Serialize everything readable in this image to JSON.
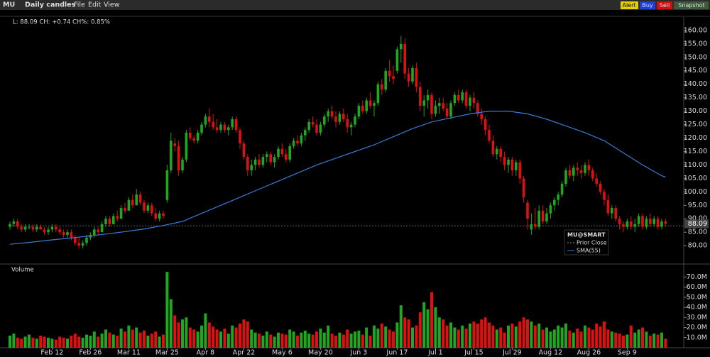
{
  "toolbar": {
    "symbol": "MU",
    "chart_type": "Daily candles",
    "menu": [
      "File",
      "Edit",
      "View"
    ],
    "buttons": [
      "Alert",
      "Buy",
      "Sell",
      "Snapshot"
    ]
  },
  "info": "L: 88.09 CH: +0.74 CH%: 0.85%",
  "legend": {
    "title": "MU@SMART",
    "items": [
      "Prior Close",
      "SMA(55)"
    ]
  },
  "volume_title": "Volume",
  "chart_data": {
    "type": "candlestick",
    "up_color": "#1fa81f",
    "down_color": "#e01010",
    "categories": [
      null,
      null,
      null,
      null,
      null,
      null,
      null,
      null,
      null,
      null,
      null,
      "Feb 12",
      null,
      null,
      null,
      null,
      null,
      null,
      null,
      null,
      null,
      "Feb 26",
      null,
      null,
      null,
      null,
      null,
      null,
      null,
      null,
      null,
      "Mar 11",
      null,
      null,
      null,
      null,
      null,
      null,
      null,
      null,
      null,
      "Mar 25",
      null,
      null,
      null,
      null,
      null,
      null,
      null,
      null,
      null,
      "Apr 8",
      null,
      null,
      null,
      null,
      null,
      null,
      null,
      null,
      null,
      "Apr 22",
      null,
      null,
      null,
      null,
      null,
      null,
      null,
      null,
      null,
      "May 6",
      null,
      null,
      null,
      null,
      null,
      null,
      null,
      null,
      null,
      "May 20",
      null,
      null,
      null,
      null,
      null,
      null,
      null,
      null,
      null,
      "Jun 3",
      null,
      null,
      null,
      null,
      null,
      null,
      null,
      null,
      null,
      "Jun 17",
      null,
      null,
      null,
      null,
      null,
      null,
      null,
      null,
      null,
      "Jul 1",
      null,
      null,
      null,
      null,
      null,
      null,
      null,
      null,
      null,
      "Jul 15",
      null,
      null,
      null,
      null,
      null,
      null,
      null,
      null,
      null,
      "Jul 29",
      null,
      null,
      null,
      null,
      null,
      null,
      null,
      null,
      null,
      "Aug 12",
      null,
      null,
      null,
      null,
      null,
      null,
      null,
      null,
      null,
      "Aug 26",
      null,
      null,
      null,
      null,
      null,
      null,
      null,
      null,
      null,
      "Sep 9",
      null,
      null,
      null,
      null,
      null,
      null,
      null,
      null,
      null,
      null
    ],
    "candles": [
      [
        87,
        89,
        86,
        88
      ],
      [
        88,
        90,
        87,
        89
      ],
      [
        89,
        90,
        86,
        87
      ],
      [
        87,
        88,
        85,
        86
      ],
      [
        86,
        88,
        85,
        87
      ],
      [
        87,
        88,
        86,
        87
      ],
      [
        87,
        88,
        85,
        86
      ],
      [
        86,
        88,
        85,
        87
      ],
      [
        87,
        88,
        86,
        86
      ],
      [
        86,
        87,
        84,
        85
      ],
      [
        85,
        87,
        84,
        86
      ],
      [
        86,
        88,
        85,
        87
      ],
      [
        87,
        88,
        85,
        86
      ],
      [
        86,
        87,
        84,
        85
      ],
      [
        85,
        86,
        83,
        84
      ],
      [
        84,
        86,
        83,
        85
      ],
      [
        85,
        86,
        82,
        83
      ],
      [
        83,
        84,
        80,
        81
      ],
      [
        81,
        83,
        79,
        80
      ],
      [
        80,
        82,
        79,
        81
      ],
      [
        81,
        84,
        80,
        83
      ],
      [
        83,
        85,
        82,
        84
      ],
      [
        84,
        87,
        83,
        86
      ],
      [
        86,
        87,
        84,
        85
      ],
      [
        85,
        89,
        85,
        88
      ],
      [
        88,
        91,
        87,
        90
      ],
      [
        90,
        91,
        87,
        88
      ],
      [
        88,
        92,
        88,
        91
      ],
      [
        91,
        93,
        89,
        90
      ],
      [
        90,
        95,
        90,
        94
      ],
      [
        94,
        96,
        92,
        93
      ],
      [
        93,
        98,
        93,
        97
      ],
      [
        97,
        99,
        94,
        95
      ],
      [
        95,
        101,
        95,
        99
      ],
      [
        99,
        100,
        95,
        96
      ],
      [
        96,
        97,
        92,
        93
      ],
      [
        93,
        96,
        92,
        95
      ],
      [
        95,
        96,
        91,
        92
      ],
      [
        92,
        94,
        89,
        90
      ],
      [
        90,
        93,
        89,
        92
      ],
      [
        92,
        93,
        90,
        91
      ],
      [
        97,
        110,
        96,
        108
      ],
      [
        108,
        122,
        107,
        119
      ],
      [
        118,
        120,
        115,
        117
      ],
      [
        117,
        119,
        106,
        108
      ],
      [
        108,
        113,
        107,
        112
      ],
      [
        112,
        123,
        111,
        122
      ],
      [
        122,
        124,
        119,
        120
      ],
      [
        120,
        121,
        118,
        119
      ],
      [
        119,
        123,
        118,
        122
      ],
      [
        122,
        126,
        121,
        125
      ],
      [
        125,
        129,
        124,
        128
      ],
      [
        128,
        131,
        124,
        126
      ],
      [
        126,
        129,
        123,
        124
      ],
      [
        124,
        127,
        122,
        123
      ],
      [
        123,
        126,
        122,
        125
      ],
      [
        125,
        126,
        122,
        123
      ],
      [
        123,
        125,
        121,
        124
      ],
      [
        124,
        128,
        123,
        127
      ],
      [
        127,
        128,
        122,
        123
      ],
      [
        123,
        124,
        116,
        118
      ],
      [
        118,
        119,
        112,
        113
      ],
      [
        113,
        114,
        106,
        108
      ],
      [
        108,
        112,
        106,
        110
      ],
      [
        110,
        113,
        108,
        112
      ],
      [
        112,
        114,
        109,
        110
      ],
      [
        110,
        114,
        109,
        113
      ],
      [
        113,
        115,
        111,
        114
      ],
      [
        114,
        115,
        110,
        111
      ],
      [
        111,
        114,
        109,
        113
      ],
      [
        113,
        117,
        112,
        116
      ],
      [
        116,
        118,
        113,
        114
      ],
      [
        114,
        116,
        111,
        112
      ],
      [
        112,
        118,
        111,
        117
      ],
      [
        117,
        120,
        116,
        119
      ],
      [
        119,
        121,
        117,
        118
      ],
      [
        118,
        122,
        117,
        121
      ],
      [
        121,
        124,
        119,
        123
      ],
      [
        123,
        127,
        122,
        126
      ],
      [
        126,
        128,
        124,
        125
      ],
      [
        125,
        127,
        121,
        122
      ],
      [
        122,
        126,
        121,
        125
      ],
      [
        125,
        129,
        124,
        128
      ],
      [
        128,
        131,
        126,
        130
      ],
      [
        130,
        132,
        127,
        128
      ],
      [
        128,
        130,
        124,
        126
      ],
      [
        126,
        130,
        125,
        129
      ],
      [
        129,
        131,
        126,
        127
      ],
      [
        127,
        129,
        122,
        124
      ],
      [
        124,
        126,
        121,
        125
      ],
      [
        125,
        129,
        124,
        128
      ],
      [
        128,
        133,
        127,
        132
      ],
      [
        132,
        134,
        129,
        130
      ],
      [
        130,
        135,
        129,
        134
      ],
      [
        134,
        137,
        131,
        132
      ],
      [
        132,
        134,
        128,
        133
      ],
      [
        133,
        141,
        132,
        140
      ],
      [
        140,
        142,
        136,
        138
      ],
      [
        138,
        146,
        137,
        145
      ],
      [
        145,
        149,
        141,
        143
      ],
      [
        143,
        147,
        140,
        142
      ],
      [
        145,
        154,
        144,
        153
      ],
      [
        153,
        158,
        148,
        155
      ],
      [
        155,
        157,
        142,
        144
      ],
      [
        144,
        146,
        139,
        141
      ],
      [
        141,
        147,
        140,
        146
      ],
      [
        146,
        148,
        137,
        139
      ],
      [
        139,
        141,
        130,
        132
      ],
      [
        132,
        136,
        128,
        134
      ],
      [
        134,
        138,
        131,
        136
      ],
      [
        136,
        137,
        127,
        129
      ],
      [
        129,
        134,
        128,
        132
      ],
      [
        132,
        135,
        129,
        133
      ],
      [
        133,
        135,
        130,
        131
      ],
      [
        131,
        133,
        127,
        128
      ],
      [
        128,
        134,
        127,
        133
      ],
      [
        133,
        137,
        132,
        136
      ],
      [
        136,
        138,
        133,
        134
      ],
      [
        134,
        138,
        133,
        137
      ],
      [
        137,
        138,
        131,
        132
      ],
      [
        132,
        136,
        130,
        135
      ],
      [
        135,
        137,
        131,
        133
      ],
      [
        133,
        134,
        128,
        129
      ],
      [
        129,
        131,
        125,
        127
      ],
      [
        127,
        128,
        121,
        123
      ],
      [
        123,
        125,
        118,
        119
      ],
      [
        119,
        121,
        113,
        114
      ],
      [
        114,
        117,
        112,
        116
      ],
      [
        116,
        117,
        111,
        113
      ],
      [
        113,
        115,
        108,
        110
      ],
      [
        110,
        113,
        107,
        112
      ],
      [
        112,
        113,
        106,
        108
      ],
      [
        108,
        112,
        106,
        111
      ],
      [
        111,
        112,
        103,
        105
      ],
      [
        105,
        106,
        96,
        98
      ],
      [
        96,
        97,
        86,
        90
      ],
      [
        86,
        92,
        84,
        88
      ],
      [
        88,
        94,
        86,
        87
      ],
      [
        87,
        95,
        86,
        93
      ],
      [
        93,
        95,
        88,
        89
      ],
      [
        89,
        94,
        88,
        92
      ],
      [
        92,
        96,
        90,
        95
      ],
      [
        95,
        98,
        93,
        97
      ],
      [
        97,
        100,
        95,
        99
      ],
      [
        99,
        104,
        98,
        103
      ],
      [
        103,
        109,
        102,
        108
      ],
      [
        108,
        110,
        105,
        106
      ],
      [
        106,
        110,
        104,
        109
      ],
      [
        109,
        111,
        106,
        108
      ],
      [
        108,
        110,
        105,
        107
      ],
      [
        107,
        111,
        106,
        110
      ],
      [
        110,
        112,
        106,
        108
      ],
      [
        108,
        109,
        104,
        105
      ],
      [
        105,
        107,
        102,
        103
      ],
      [
        103,
        104,
        99,
        100
      ],
      [
        100,
        101,
        95,
        97
      ],
      [
        97,
        99,
        91,
        92
      ],
      [
        92,
        95,
        90,
        94
      ],
      [
        94,
        95,
        89,
        90
      ],
      [
        90,
        91,
        86,
        88
      ],
      [
        88,
        89,
        85,
        87
      ],
      [
        87,
        90,
        86,
        89
      ],
      [
        89,
        91,
        86,
        87
      ],
      [
        87,
        90,
        85,
        88
      ],
      [
        88,
        92,
        87,
        91
      ],
      [
        91,
        92,
        86,
        87
      ],
      [
        87,
        91,
        86,
        90
      ],
      [
        90,
        92,
        87,
        88
      ],
      [
        88,
        91,
        87,
        90
      ],
      [
        90,
        91,
        86,
        87
      ],
      [
        87,
        90,
        86,
        89
      ],
      [
        89,
        90,
        87,
        88.09
      ]
    ],
    "volume": [
      12,
      14,
      10,
      9,
      11,
      13,
      10,
      9,
      12,
      11,
      10,
      9,
      8,
      11,
      10,
      9,
      12,
      14,
      11,
      10,
      13,
      12,
      16,
      11,
      14,
      18,
      15,
      13,
      12,
      19,
      16,
      22,
      18,
      20,
      15,
      17,
      12,
      14,
      16,
      11,
      13,
      75,
      48,
      32,
      25,
      28,
      30,
      20,
      18,
      16,
      22,
      34,
      25,
      21,
      18,
      16,
      19,
      14,
      22,
      20,
      24,
      28,
      26,
      18,
      15,
      14,
      12,
      16,
      13,
      11,
      15,
      14,
      13,
      18,
      16,
      12,
      15,
      17,
      14,
      13,
      16,
      19,
      15,
      22,
      14,
      12,
      15,
      13,
      18,
      14,
      16,
      17,
      13,
      20,
      12,
      22,
      19,
      24,
      21,
      18,
      16,
      25,
      42,
      30,
      28,
      20,
      22,
      35,
      45,
      38,
      55,
      40,
      30,
      28,
      22,
      25,
      20,
      18,
      22,
      19,
      24,
      26,
      24,
      28,
      30,
      25,
      22,
      18,
      20,
      15,
      22,
      24,
      21,
      26,
      30,
      28,
      26,
      22,
      24,
      18,
      20,
      16,
      18,
      22,
      20,
      24,
      17,
      15,
      19,
      16,
      22,
      20,
      18,
      24,
      21,
      26,
      18,
      16,
      15,
      14,
      12,
      13,
      22,
      15,
      18,
      20,
      16,
      12,
      14,
      13,
      15,
      9
    ],
    "sma": {
      "name": "SMA(55)",
      "color": "#3a7bd5",
      "x": [
        0,
        5,
        10,
        15,
        20,
        25,
        30,
        35,
        40,
        45,
        50,
        55,
        60,
        65,
        70,
        75,
        80,
        85,
        90,
        95,
        100,
        105,
        110,
        115,
        120,
        125,
        130,
        135,
        140,
        145,
        150,
        155,
        160,
        165,
        170,
        171
      ],
      "values": [
        80.5,
        81.2,
        82,
        82.7,
        83.5,
        84.3,
        85.2,
        86.2,
        87.5,
        89,
        92,
        95,
        98,
        101,
        104,
        107,
        110,
        112.5,
        115,
        117.5,
        120.5,
        123.5,
        126,
        127.5,
        129,
        130,
        130,
        129,
        127,
        124.5,
        122,
        119,
        114.5,
        110,
        106,
        105.5
      ]
    },
    "prior_close": 87.35,
    "ylim": [
      73.7,
      163.4
    ],
    "yticks": [
      {
        "value": 80,
        "label": "80.00"
      },
      {
        "value": 85,
        "label": "85.00"
      },
      {
        "value": 90,
        "label": "90.00"
      },
      {
        "value": 95,
        "label": "95.00"
      },
      {
        "value": 100,
        "label": "100.00"
      },
      {
        "value": 105,
        "label": "105.00"
      },
      {
        "value": 110,
        "label": "110.00"
      },
      {
        "value": 115,
        "label": "115.00"
      },
      {
        "value": 120,
        "label": "120.00"
      },
      {
        "value": 125,
        "label": "125.00"
      },
      {
        "value": 130,
        "label": "130.00"
      },
      {
        "value": 135,
        "label": "135.00"
      },
      {
        "value": 140,
        "label": "140.00"
      },
      {
        "value": 145,
        "label": "145.00"
      },
      {
        "value": 150,
        "label": "150.00"
      },
      {
        "value": 155,
        "label": "155.00"
      },
      {
        "value": 160,
        "label": "160.00"
      }
    ],
    "vlim": [
      0,
      80
    ],
    "vticks": [
      {
        "value": 10,
        "label": "10.0M"
      },
      {
        "value": 20,
        "label": "20.0M"
      },
      {
        "value": 30,
        "label": "30.0M"
      },
      {
        "value": 40,
        "label": "40.0M"
      },
      {
        "value": 50,
        "label": "50.0M"
      },
      {
        "value": 60,
        "label": "60.0M"
      },
      {
        "value": 70,
        "label": "70.0M"
      }
    ]
  }
}
